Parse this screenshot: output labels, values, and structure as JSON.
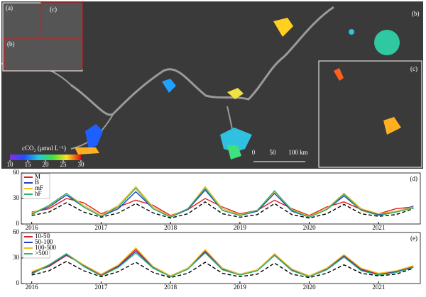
{
  "map": {
    "labels": {
      "inset_a": "(a)",
      "inset_a_b": "(b)",
      "inset_a_c": "(c)",
      "panel_b": "(b)",
      "panel_c": "(c)"
    },
    "colorbar": {
      "title": "cCO₂ (μmol L⁻¹)",
      "ticks": [
        10,
        15,
        20,
        25,
        30
      ],
      "lim": [
        10,
        30
      ]
    },
    "scale_bar": [
      "0",
      "50",
      "100 km"
    ]
  },
  "chart_data": [
    {
      "type": "line",
      "panel_label": "(d)",
      "x": [
        2016,
        2016.25,
        2016.5,
        2016.75,
        2017,
        2017.25,
        2017.5,
        2017.75,
        2018,
        2018.25,
        2018.5,
        2018.75,
        2019,
        2019.25,
        2019.5,
        2019.75,
        2020,
        2020.25,
        2020.5,
        2020.75,
        2021,
        2021.25,
        2021.5
      ],
      "xlim": [
        2015.85,
        2021.6
      ],
      "xticks": [
        2016,
        2017,
        2018,
        2019,
        2020,
        2021
      ],
      "ylim": [
        0,
        60
      ],
      "yticks": [
        0,
        30,
        60
      ],
      "series": [
        {
          "name": "M",
          "color": "#e02020",
          "values": [
            14,
            18,
            30,
            25,
            12,
            20,
            28,
            22,
            10,
            17,
            30,
            20,
            12,
            16,
            28,
            18,
            10,
            20,
            26,
            17,
            12,
            18,
            20
          ]
        },
        {
          "name": "B",
          "color": "#2040c0",
          "values": [
            12,
            20,
            34,
            20,
            9,
            18,
            38,
            18,
            8,
            17,
            40,
            16,
            10,
            15,
            36,
            15,
            8,
            17,
            33,
            16,
            11,
            14,
            21
          ]
        },
        {
          "name": "mF",
          "color": "#f0c020",
          "values": [
            13,
            21,
            36,
            22,
            10,
            22,
            44,
            20,
            9,
            18,
            44,
            18,
            11,
            16,
            38,
            17,
            9,
            18,
            36,
            18,
            12,
            15,
            20
          ]
        },
        {
          "name": "hF",
          "color": "#30b070",
          "values": [
            11,
            22,
            36,
            20,
            9,
            20,
            42,
            18,
            8,
            18,
            42,
            16,
            10,
            16,
            39,
            16,
            8,
            17,
            35,
            16,
            10,
            14,
            19
          ]
        },
        {
          "color": "#000000",
          "dash": true,
          "values": [
            10,
            14,
            25,
            14,
            8,
            13,
            24,
            13,
            7,
            12,
            26,
            12,
            8,
            11,
            24,
            11,
            7,
            12,
            23,
            12,
            9,
            11,
            18
          ]
        }
      ]
    },
    {
      "type": "line",
      "panel_label": "(e)",
      "x": [
        2016,
        2016.25,
        2016.5,
        2016.75,
        2017,
        2017.25,
        2017.5,
        2017.75,
        2018,
        2018.25,
        2018.5,
        2018.75,
        2019,
        2019.25,
        2019.5,
        2019.75,
        2020,
        2020.25,
        2020.5,
        2020.75,
        2021,
        2021.25,
        2021.5
      ],
      "xlim": [
        2015.85,
        2021.6
      ],
      "xticks": [
        2016,
        2017,
        2018,
        2019,
        2020,
        2021
      ],
      "ylim": [
        0,
        60
      ],
      "yticks": [
        0,
        30,
        60
      ],
      "series": [
        {
          "name": "10-50",
          "color": "#e02020",
          "values": [
            13,
            20,
            33,
            22,
            10,
            21,
            40,
            20,
            9,
            18,
            38,
            18,
            11,
            16,
            34,
            17,
            9,
            18,
            33,
            17,
            11,
            14,
            20
          ]
        },
        {
          "name": "50-100",
          "color": "#2040c0",
          "values": [
            12,
            21,
            34,
            21,
            9,
            20,
            38,
            19,
            8,
            17,
            37,
            17,
            10,
            15,
            33,
            16,
            8,
            17,
            32,
            16,
            10,
            14,
            19
          ]
        },
        {
          "name": "100-500",
          "color": "#f0c020",
          "values": [
            14,
            22,
            35,
            22,
            11,
            22,
            42,
            20,
            9,
            18,
            40,
            18,
            11,
            16,
            35,
            17,
            9,
            18,
            34,
            18,
            12,
            15,
            21
          ]
        },
        {
          "name": ">500",
          "color": "#30b070",
          "values": [
            11,
            22,
            35,
            20,
            9,
            19,
            36,
            18,
            8,
            17,
            36,
            16,
            10,
            15,
            33,
            15,
            8,
            16,
            31,
            15,
            10,
            13,
            19
          ]
        },
        {
          "color": "#000000",
          "dash": true,
          "values": [
            10,
            15,
            26,
            15,
            8,
            14,
            25,
            13,
            7,
            12,
            25,
            12,
            8,
            11,
            24,
            11,
            7,
            12,
            22,
            12,
            9,
            11,
            18
          ]
        }
      ]
    }
  ]
}
